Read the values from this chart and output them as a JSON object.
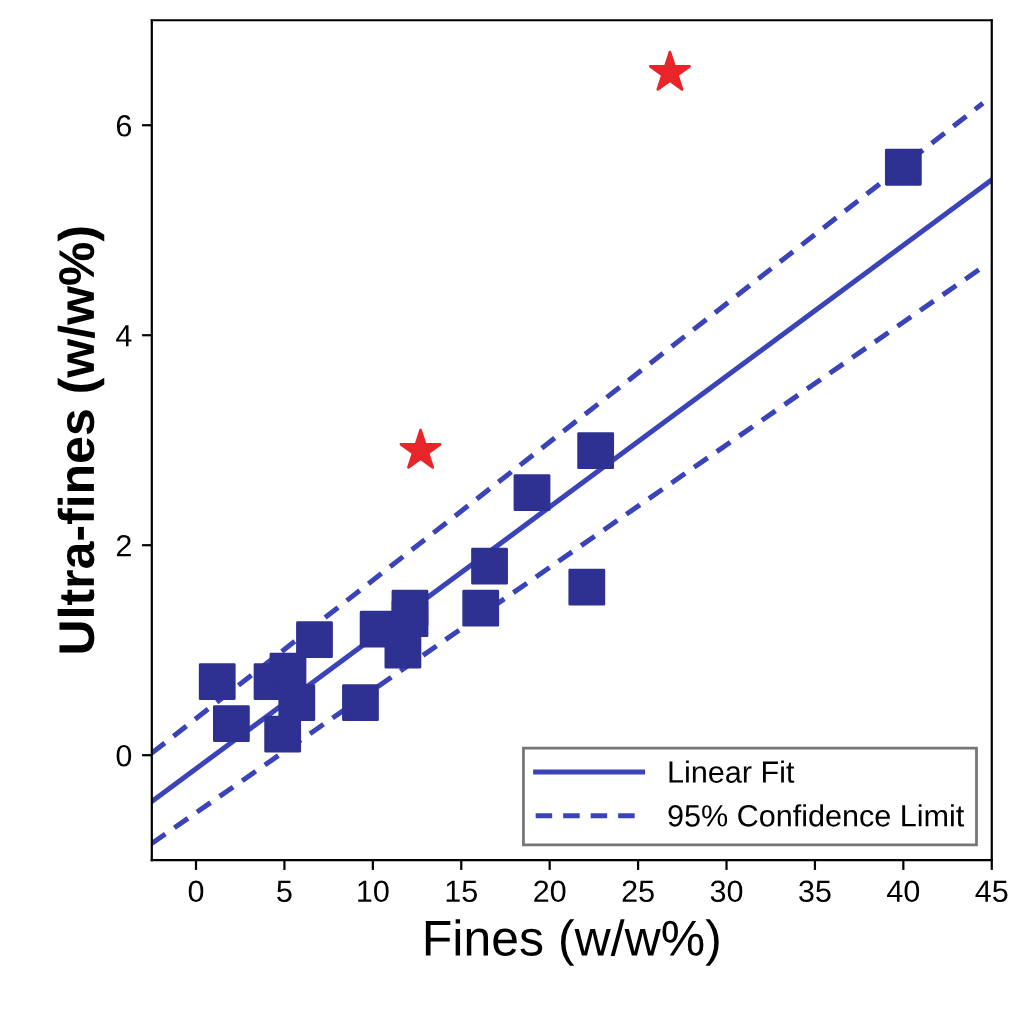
{
  "chart_data": {
    "type": "scatter",
    "xlabel": "Fines (w/w%)",
    "ylabel": "Ultra-fines (w/w%)",
    "xlim": [
      -2.5,
      45
    ],
    "ylim": [
      -1,
      7
    ],
    "xticks": [
      0,
      5,
      10,
      15,
      20,
      25,
      30,
      35,
      40,
      45
    ],
    "yticks": [
      0,
      2,
      4,
      6
    ],
    "grid": false,
    "legend": "bottom right",
    "series": [
      {
        "marker": "square",
        "color": "#2e3192",
        "x": [
          1.2,
          2.0,
          4.3,
          5.2,
          4.9,
          5.7,
          6.7,
          9.3,
          10.3,
          11.7,
          12.1,
          12.1,
          16.1,
          16.6,
          22.1,
          19.0,
          22.6,
          40.0
        ],
        "values": [
          0.7,
          0.3,
          0.7,
          0.8,
          0.2,
          0.5,
          1.1,
          0.5,
          1.2,
          1.0,
          1.4,
          1.3,
          1.4,
          1.8,
          1.6,
          2.5,
          2.9,
          5.6
        ]
      },
      {
        "marker": "star",
        "color": "#e8262a",
        "x": [
          12.7,
          26.8
        ],
        "values": [
          2.9,
          6.5
        ]
      },
      {
        "type": "line",
        "name": "Linear Fit",
        "line_style": "solid",
        "marker": "none",
        "color": "#3a44b8",
        "x": [
          -2.5,
          45
        ],
        "values": [
          -0.44,
          5.48
        ]
      },
      {
        "type": "line",
        "name": "95% Confidence Limit",
        "line_style": "dashed",
        "marker": "none",
        "color": "#3a44b8",
        "x": [
          -2.5,
          44.5
        ],
        "values": [
          0.02,
          6.21
        ]
      },
      {
        "type": "line",
        "line_style": "dashed",
        "marker": "none",
        "color": "#3a44b8",
        "x": [
          -2.5,
          44.5
        ],
        "values": [
          -0.84,
          4.65
        ]
      }
    ]
  }
}
